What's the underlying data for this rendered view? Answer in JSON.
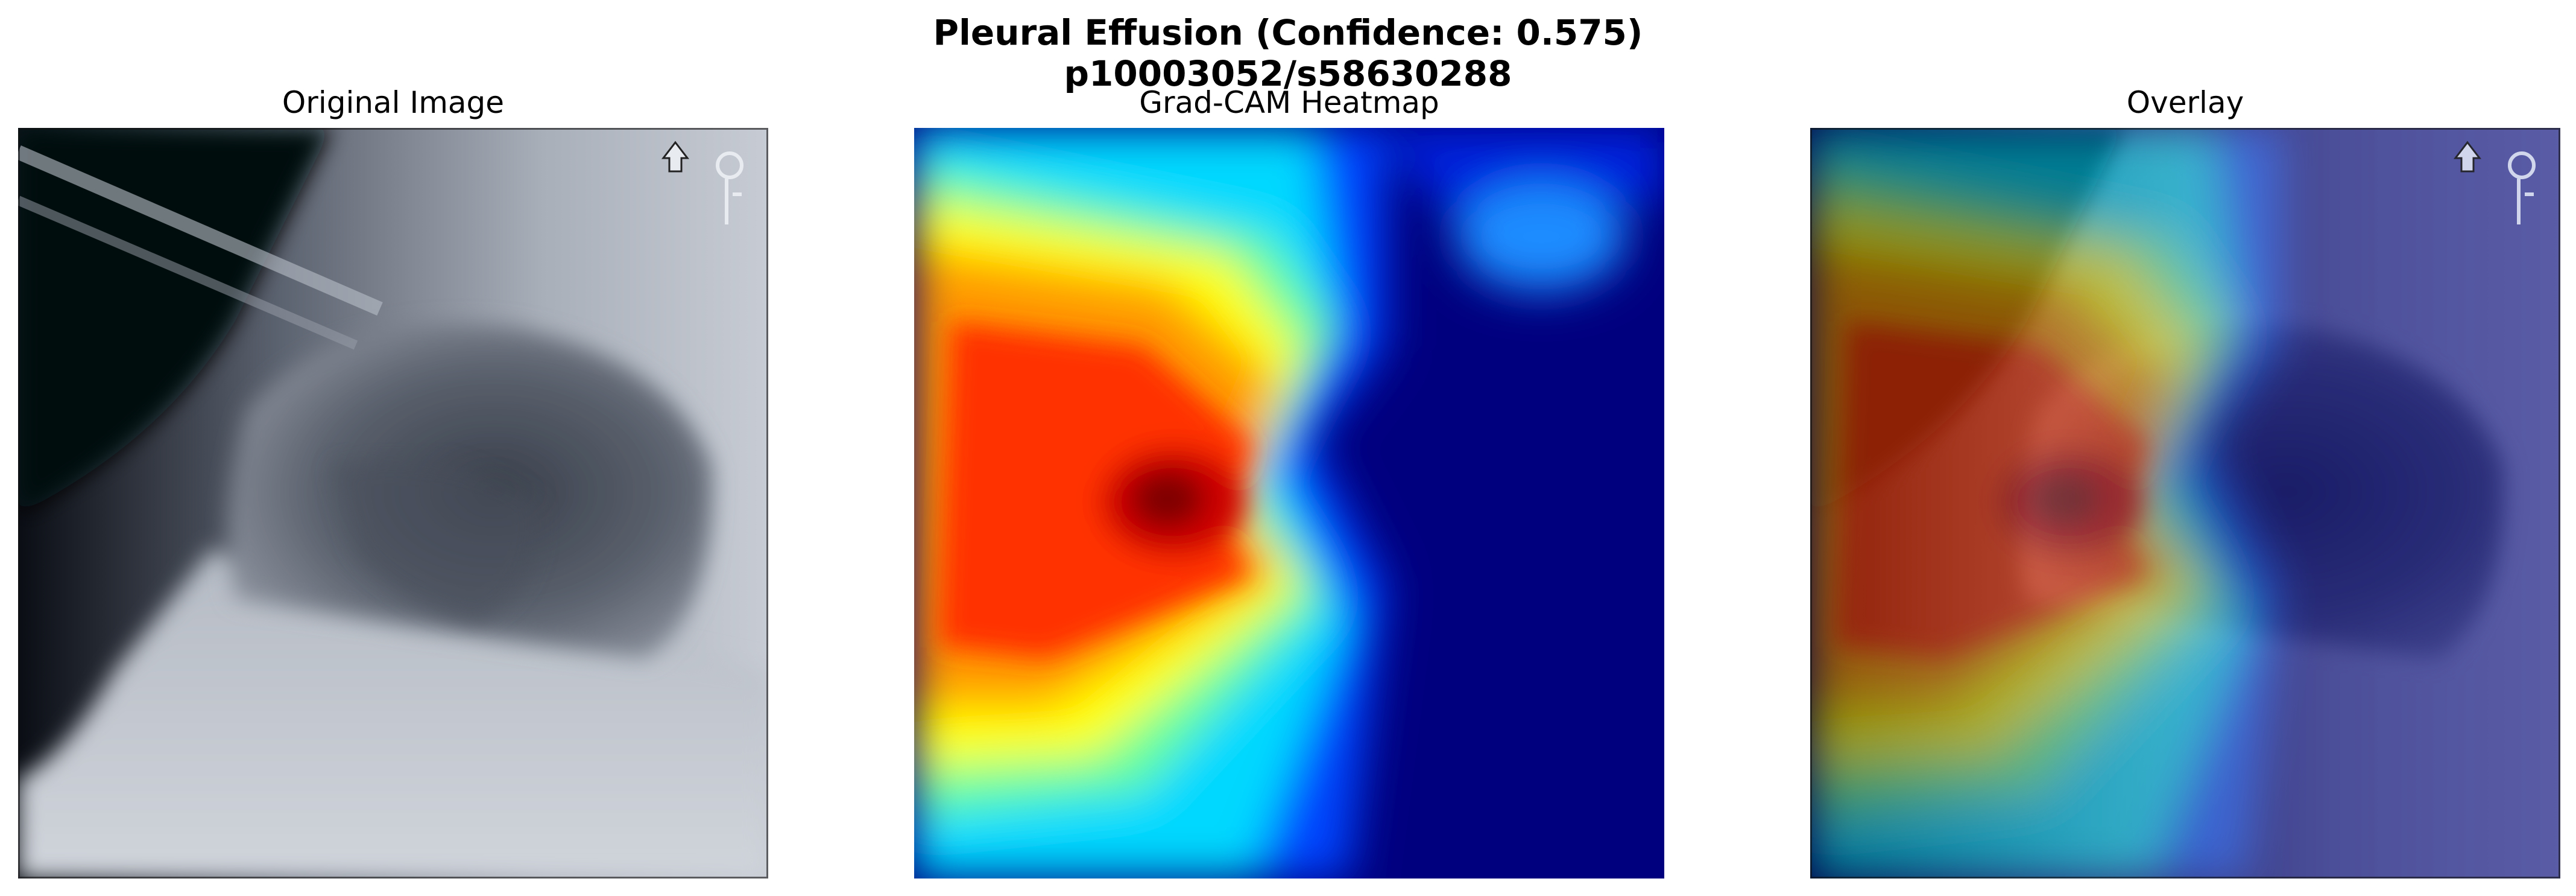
{
  "figure": {
    "title_line1": "Pleural Effusion (Confidence: 0.575)",
    "title_line2": "p10003052/s58630288"
  },
  "panels": [
    {
      "title": "Original Image"
    },
    {
      "title": "Grad-CAM Heatmap"
    },
    {
      "title": "Overlay"
    }
  ],
  "colormap": "jet"
}
